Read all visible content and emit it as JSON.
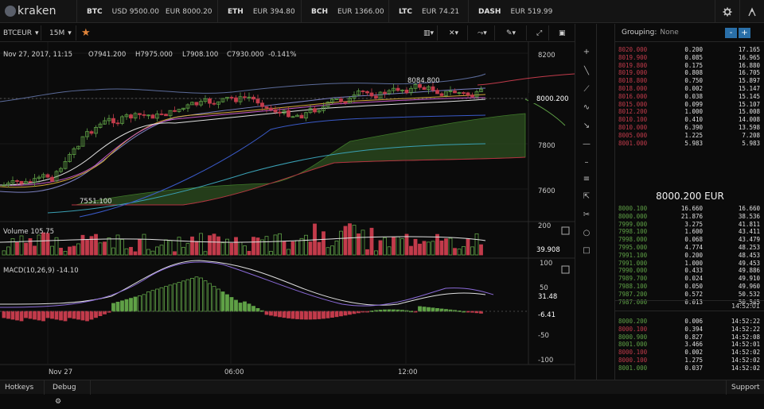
{
  "brand": "kraken",
  "tickers": [
    {
      "sym": "BTC",
      "prices": [
        "USD 9500.00",
        "EUR 8000.20"
      ]
    },
    {
      "sym": "ETH",
      "prices": [
        "EUR 394.80"
      ]
    },
    {
      "sym": "BCH",
      "prices": [
        "EUR 1366.00"
      ]
    },
    {
      "sym": "LTC",
      "prices": [
        "EUR 74.21"
      ]
    },
    {
      "sym": "DASH",
      "prices": [
        "EUR 519.99"
      ]
    }
  ],
  "toolbar": {
    "pair": "BTCEUR",
    "interval": "15M"
  },
  "chart": {
    "date": "Nov 27, 2017, 11:15",
    "ohlc": {
      "o": "O7941.200",
      "h": "H7975.000",
      "l": "L7908.100",
      "c": "C7930.000",
      "pct": "-0.141%"
    },
    "price_axis": [
      "8200",
      "7800",
      "7600"
    ],
    "last_price": "8000.200",
    "hi_label": "8084.800",
    "lo_label": "7551.100",
    "volume_label": "Volume 105.75",
    "vol_axis": [
      "200"
    ],
    "vol_last": "39.908",
    "macd_label": "MACD(10,26,9) -14.10",
    "macd_axis": [
      "100",
      "50",
      "-50",
      "-100"
    ],
    "macd_v1": "31.48",
    "macd_v2": "-6.41",
    "time_axis": [
      "Nov 27",
      "06:00",
      "12:00"
    ]
  },
  "orderbook": {
    "grouping_label": "Grouping:",
    "grouping_value": "None",
    "asks": [
      [
        "8020.000",
        "0.200",
        "17.165"
      ],
      [
        "8019.900",
        "0.085",
        "16.965"
      ],
      [
        "8019.800",
        "0.175",
        "16.880"
      ],
      [
        "8019.000",
        "0.808",
        "16.705"
      ],
      [
        "8018.800",
        "0.750",
        "15.897"
      ],
      [
        "8018.000",
        "0.002",
        "15.147"
      ],
      [
        "8016.000",
        "0.038",
        "15.145"
      ],
      [
        "8015.000",
        "0.099",
        "15.107"
      ],
      [
        "8012.200",
        "1.000",
        "15.008"
      ],
      [
        "8010.100",
        "0.410",
        "14.008"
      ],
      [
        "8010.000",
        "6.390",
        "13.598"
      ],
      [
        "8005.000",
        "1.225",
        "7.208"
      ],
      [
        "8001.000",
        "5.983",
        "5.983"
      ]
    ],
    "mid": "8000.200 EUR",
    "bids": [
      [
        "8000.100",
        "16.660",
        "16.660"
      ],
      [
        "8000.000",
        "21.876",
        "38.536"
      ],
      [
        "7999.000",
        "3.275",
        "41.811"
      ],
      [
        "7998.100",
        "1.600",
        "43.411"
      ],
      [
        "7998.000",
        "0.068",
        "43.479"
      ],
      [
        "7995.000",
        "4.774",
        "48.253"
      ],
      [
        "7991.100",
        "0.200",
        "48.453"
      ],
      [
        "7991.000",
        "1.000",
        "49.453"
      ],
      [
        "7990.000",
        "0.433",
        "49.886"
      ],
      [
        "7989.700",
        "0.024",
        "49.910"
      ],
      [
        "7988.100",
        "0.050",
        "49.960"
      ],
      [
        "7987.200",
        "0.572",
        "50.532"
      ],
      [
        "7987.000",
        "0.013",
        "50.545"
      ]
    ],
    "time_header": "14:52:01",
    "trades": [
      [
        "8000.200",
        "0.006",
        "14:52:22",
        "buy"
      ],
      [
        "8000.100",
        "0.394",
        "14:52:22",
        "sell"
      ],
      [
        "8000.900",
        "0.827",
        "14:52:08",
        "buy"
      ],
      [
        "8001.000",
        "3.466",
        "14:52:01",
        "buy"
      ],
      [
        "8000.100",
        "0.002",
        "14:52:02",
        "sell"
      ],
      [
        "8000.100",
        "1.275",
        "14:52:02",
        "sell"
      ],
      [
        "8001.000",
        "0.037",
        "14:52:02",
        "buy"
      ]
    ]
  },
  "bottom": {
    "hotkeys": "Hotkeys",
    "debug": "Debug",
    "support": "Support"
  },
  "colors": {
    "up": "#5fa146",
    "down": "#c23b4b",
    "accent": "#2a6fa8",
    "star": "#e0843a"
  }
}
